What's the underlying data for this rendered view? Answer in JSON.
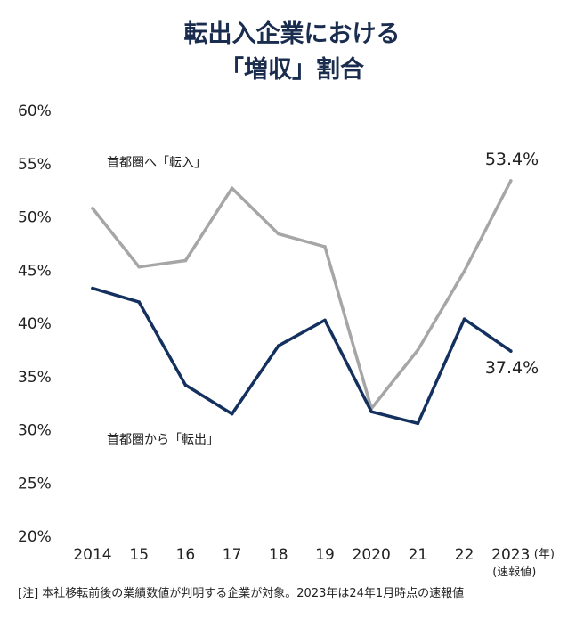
{
  "title_line1": "転出入企業における",
  "title_line2": "「増収」割合",
  "footnote": "[注] 本社移転前後の業績数値が判明する企業が対象。2023年は24年1月時点の速報値",
  "chart_data": {
    "type": "line",
    "title": "転出入企業における「増収」割合",
    "categories": [
      "2014",
      "15",
      "16",
      "17",
      "18",
      "19",
      "2020",
      "21",
      "22",
      "2023"
    ],
    "x_unit": "(年)",
    "x_note": "(速報値)",
    "y_ticks": [
      "60%",
      "55%",
      "50%",
      "45%",
      "40%",
      "35%",
      "30%",
      "25%",
      "20%"
    ],
    "ylim": [
      20,
      60
    ],
    "grid": false,
    "series": [
      {
        "name": "首都圏へ「転入」",
        "color": "#a6a6a6",
        "values": [
          50.8,
          45.3,
          45.9,
          52.7,
          48.4,
          47.2,
          32.0,
          37.5,
          44.9,
          53.4
        ],
        "end_label": "53.4%"
      },
      {
        "name": "首都圏から「転出」",
        "color": "#14305e",
        "values": [
          43.3,
          42.0,
          34.2,
          31.5,
          37.9,
          40.3,
          31.7,
          30.6,
          40.4,
          37.4
        ],
        "end_label": "37.4%"
      }
    ]
  }
}
